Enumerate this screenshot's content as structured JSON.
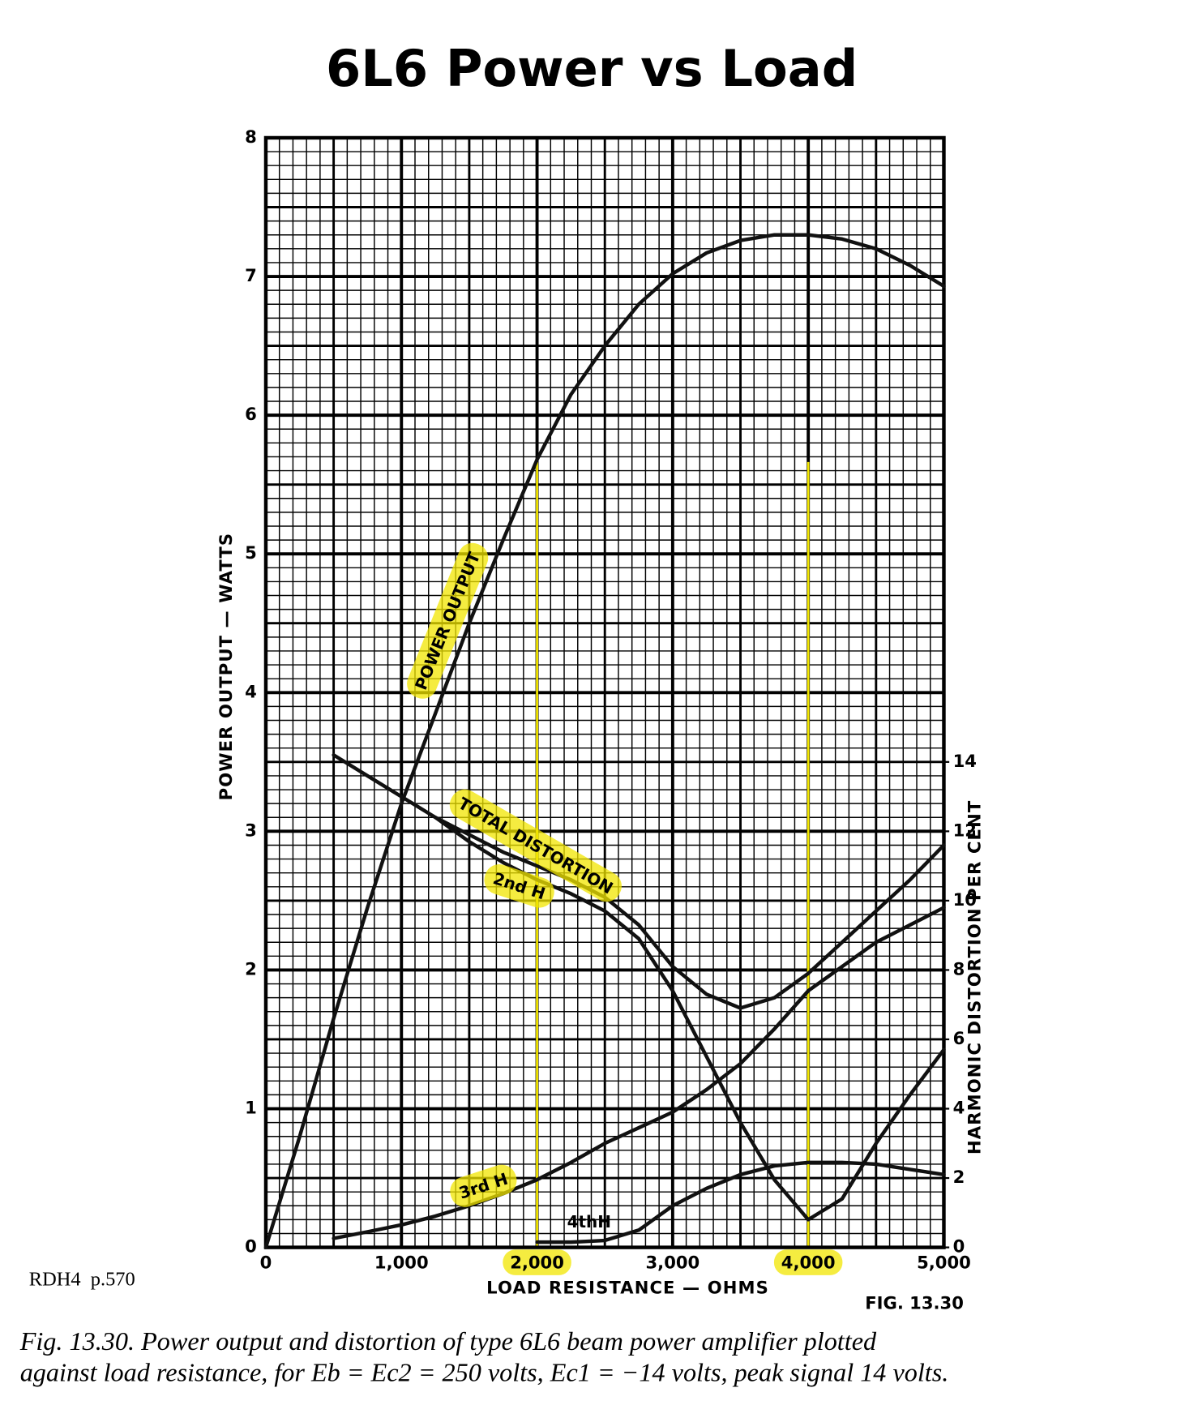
{
  "chart_data": {
    "type": "line",
    "title": "6L6 Power vs Load",
    "xlabel": "LOAD RESISTANCE — OHMS",
    "ylabel": "POWER OUTPUT — WATTS",
    "y2label": "HARMONIC DISTORTION PER CENT",
    "figure_label": "FIG. 13.30",
    "source_note": "RDH4  p.570",
    "caption": [
      "Fig. 13.30.  Power output and distortion of type 6L6 beam power amplifier plotted",
      "against load resistance, for Eb = Ec2 = 250 volts, Ec1 = −14 volts, peak signal 14 volts."
    ],
    "x": [
      0,
      250,
      500,
      750,
      1000,
      1250,
      1500,
      1750,
      2000,
      2250,
      2500,
      2750,
      3000,
      3250,
      3500,
      3750,
      4000,
      4250,
      4500,
      4750,
      5000
    ],
    "xlim": [
      0,
      5000
    ],
    "xticks": [
      0,
      {
        "value": 1000,
        "label": "1,000"
      },
      {
        "value": 2000,
        "label": "2,000"
      },
      {
        "value": 3000,
        "label": "3,000"
      },
      {
        "value": 4000,
        "label": "4,000"
      },
      {
        "value": 5000,
        "label": "5,000"
      }
    ],
    "ylim": [
      0,
      8
    ],
    "yticks": [
      0,
      1,
      2,
      3,
      4,
      5,
      6,
      7,
      8
    ],
    "y2lim": [
      0,
      32
    ],
    "y2ticks": [
      0,
      2,
      4,
      6,
      8,
      10,
      12,
      14
    ],
    "grid": true,
    "minor_grid": true,
    "highlight_x": [
      2000,
      4000
    ],
    "highlight_color": "#f2e600",
    "series": [
      {
        "name": "POWER OUTPUT",
        "color": "#111111",
        "values": [
          0,
          0.8,
          1.65,
          2.45,
          3.2,
          3.85,
          4.5,
          5.1,
          5.68,
          6.15,
          6.5,
          6.8,
          7.02,
          7.17,
          7.26,
          7.3,
          7.3,
          7.27,
          7.2,
          7.08,
          6.93
        ]
      },
      {
        "name": "TOTAL DISTORTION",
        "color": "#111111",
        "axis": "y2",
        "values": [
          null,
          null,
          14.2,
          13.6,
          13.0,
          12.4,
          11.9,
          11.4,
          11.0,
          10.6,
          10.1,
          9.3,
          8.1,
          7.3,
          6.9,
          7.2,
          7.9,
          8.8,
          9.7,
          10.6,
          11.6
        ]
      },
      {
        "name": "2nd H",
        "color": "#111111",
        "axis": "y2",
        "values": [
          null,
          null,
          null,
          null,
          null,
          12.4,
          11.7,
          11.1,
          10.6,
          10.2,
          9.7,
          8.9,
          7.4,
          5.5,
          3.6,
          1.95,
          0.8,
          1.4,
          3.0,
          4.4,
          5.7
        ]
      },
      {
        "name": "3rd H",
        "color": "#111111",
        "axis": "y2",
        "values": [
          null,
          null,
          0.26,
          0.45,
          0.65,
          0.9,
          1.2,
          1.55,
          1.95,
          2.45,
          3.0,
          3.45,
          3.9,
          4.55,
          5.3,
          6.3,
          7.4,
          8.1,
          8.8,
          9.3,
          9.8
        ]
      },
      {
        "name": "4thH",
        "color": "#111111",
        "axis": "y2",
        "values": [
          null,
          null,
          null,
          null,
          null,
          null,
          null,
          null,
          0.15,
          0.15,
          0.2,
          0.5,
          1.2,
          1.7,
          2.1,
          2.35,
          2.45,
          2.45,
          2.4,
          2.25,
          2.1
        ]
      }
    ]
  }
}
